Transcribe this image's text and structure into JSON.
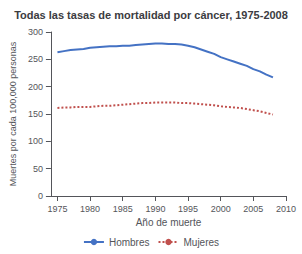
{
  "chart_data": {
    "type": "line",
    "title": "Todas las tasas de mortalidad por cáncer, 1975-2008",
    "xlabel": "Año de muerte",
    "ylabel": "Muertes por cada 100,000 personas",
    "x": [
      1975,
      1976,
      1977,
      1978,
      1979,
      1980,
      1981,
      1982,
      1983,
      1984,
      1985,
      1986,
      1987,
      1988,
      1989,
      1990,
      1991,
      1992,
      1993,
      1994,
      1995,
      1996,
      1997,
      1998,
      1999,
      2000,
      2001,
      2002,
      2003,
      2004,
      2005,
      2006,
      2007,
      2008
    ],
    "series": [
      {
        "name": "Hombres",
        "color": "#4472C4",
        "line_style": "solid",
        "values": [
          263,
          265,
          267,
          268,
          269,
          271,
          272,
          273,
          274,
          274,
          275,
          275,
          276,
          277,
          278,
          279,
          279,
          278,
          278,
          277,
          275,
          272,
          268,
          264,
          260,
          254,
          250,
          246,
          242,
          238,
          232,
          228,
          222,
          217
        ]
      },
      {
        "name": "Mujeres",
        "color": "#C0504D",
        "line_style": "dotted",
        "values": [
          161,
          162,
          162,
          163,
          163,
          163,
          164,
          165,
          165,
          166,
          167,
          168,
          169,
          170,
          170,
          171,
          171,
          171,
          171,
          170,
          170,
          169,
          168,
          167,
          166,
          164,
          163,
          162,
          161,
          159,
          157,
          155,
          152,
          149
        ]
      }
    ],
    "xlim": [
      1974,
      2010
    ],
    "ylim": [
      0,
      300
    ],
    "xticks": [
      1975,
      1980,
      1985,
      1990,
      1995,
      2000,
      2005,
      2010
    ],
    "yticks": [
      0,
      50,
      100,
      150,
      200,
      250,
      300
    ],
    "grid": false,
    "legend": "bottom"
  }
}
